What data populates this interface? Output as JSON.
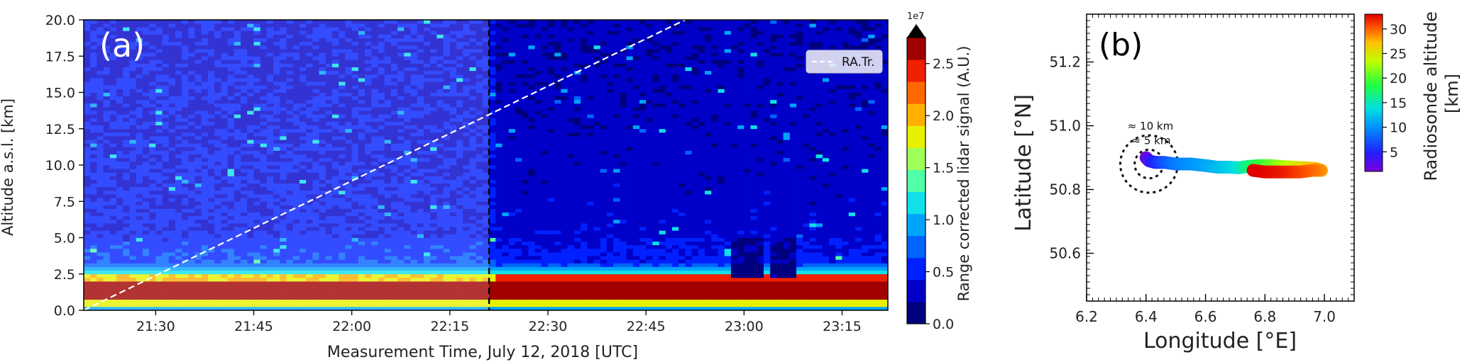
{
  "chart_data": [
    {
      "type": "heatmap",
      "panel_label": "(a)",
      "xlabel": "Measurement Time, July 12, 2018 [UTC]",
      "ylabel": "Altitude a.s.l. [km]",
      "xlim": [
        "21:19",
        "23:22"
      ],
      "x_ticks": [
        "21:30",
        "21:45",
        "22:00",
        "22:15",
        "22:30",
        "22:45",
        "23:00",
        "23:15"
      ],
      "ylim": [
        0,
        20
      ],
      "y_ticks": [
        "0.0",
        "2.5",
        "5.0",
        "7.5",
        "10.0",
        "12.5",
        "15.0",
        "17.5",
        "20.0"
      ],
      "colorbar": {
        "label": "Range corrected lidar signal (A.U.)",
        "exponent_label": "1e7",
        "ticks": [
          "0.0",
          "0.5",
          "1.0",
          "1.5",
          "2.0",
          "2.5"
        ],
        "range": [
          0,
          2.75
        ],
        "colors": [
          "#00007f",
          "#0000c8",
          "#0020ff",
          "#0064ff",
          "#00a4ff",
          "#10e0e8",
          "#50ffa8",
          "#a0ff58",
          "#e8f000",
          "#ffb000",
          "#ff6800",
          "#f02000",
          "#a00000"
        ]
      },
      "shaded_region": {
        "start": "21:19",
        "end": "22:21"
      },
      "vertical_line": "22:21",
      "legend": {
        "entries": [
          "RA.Tr."
        ],
        "position": "top-right"
      },
      "series": [
        {
          "name": "RA.Tr.",
          "style": "white dashed",
          "x": [
            "21:19",
            "22:51"
          ],
          "y": [
            0.0,
            20.0
          ]
        }
      ],
      "layers": [
        {
          "altitude_km": [
            0.0,
            0.3
          ],
          "level": "light blue"
        },
        {
          "altitude_km": [
            0.3,
            0.7
          ],
          "level": "yellow"
        },
        {
          "altitude_km": [
            0.7,
            2.1
          ],
          "level": "dark red (max)"
        },
        {
          "altitude_km": [
            2.1,
            2.6
          ],
          "level": "orange/yellow"
        },
        {
          "altitude_km": [
            2.6,
            3.3
          ],
          "level": "cyan/green"
        },
        {
          "altitude_km": [
            3.3,
            20.0
          ],
          "level": "blue (low, noisy)"
        }
      ],
      "low_signal_gaps": [
        {
          "time": [
            "22:58",
            "23:02"
          ],
          "altitude_km": [
            2.2,
            5.0
          ]
        },
        {
          "time": [
            "23:04",
            "23:07"
          ],
          "altitude_km": [
            2.2,
            5.0
          ]
        }
      ]
    },
    {
      "type": "scatter",
      "panel_label": "(b)",
      "xlabel": "Longitude [°E]",
      "ylabel": "Latitude [°N]",
      "xlim": [
        6.2,
        7.1
      ],
      "ylim": [
        50.45,
        51.35
      ],
      "x_ticks": [
        "6.2",
        "6.4",
        "6.6",
        "6.8",
        "7.0"
      ],
      "y_ticks": [
        "50.6",
        "50.8",
        "51.0",
        "51.2"
      ],
      "colorbar": {
        "label": "Radiosonde altitude [km]",
        "ticks": [
          "5",
          "10",
          "15",
          "20",
          "25",
          "30"
        ],
        "range": [
          1,
          33
        ]
      },
      "circles": [
        {
          "label": "≈ 5 km",
          "center": [
            6.41,
            50.88
          ],
          "radius_km": 5
        },
        {
          "label": "≈ 10 km",
          "center": [
            6.41,
            50.88
          ],
          "radius_km": 10
        }
      ],
      "trajectory": {
        "name": "radiosonde track",
        "lon": [
          6.4,
          6.41,
          6.43,
          6.46,
          6.5,
          6.55,
          6.6,
          6.64,
          6.68,
          6.71,
          6.74,
          6.78,
          6.82,
          6.86,
          6.9,
          6.94,
          6.97,
          6.99,
          6.96,
          6.92,
          6.88,
          6.84,
          6.8,
          6.76
        ],
        "lat": [
          50.9,
          50.89,
          50.885,
          50.885,
          50.88,
          50.88,
          50.875,
          50.87,
          50.87,
          50.868,
          50.872,
          50.875,
          50.875,
          50.872,
          50.87,
          50.868,
          50.866,
          50.86,
          50.86,
          50.855,
          50.855,
          50.855,
          50.855,
          50.86
        ],
        "alt_km": [
          1,
          3,
          5,
          7,
          9,
          10,
          11,
          12,
          13,
          14,
          16,
          18,
          20,
          22,
          24,
          26,
          27,
          28,
          29,
          30,
          31,
          32,
          32.5,
          33
        ]
      }
    }
  ]
}
